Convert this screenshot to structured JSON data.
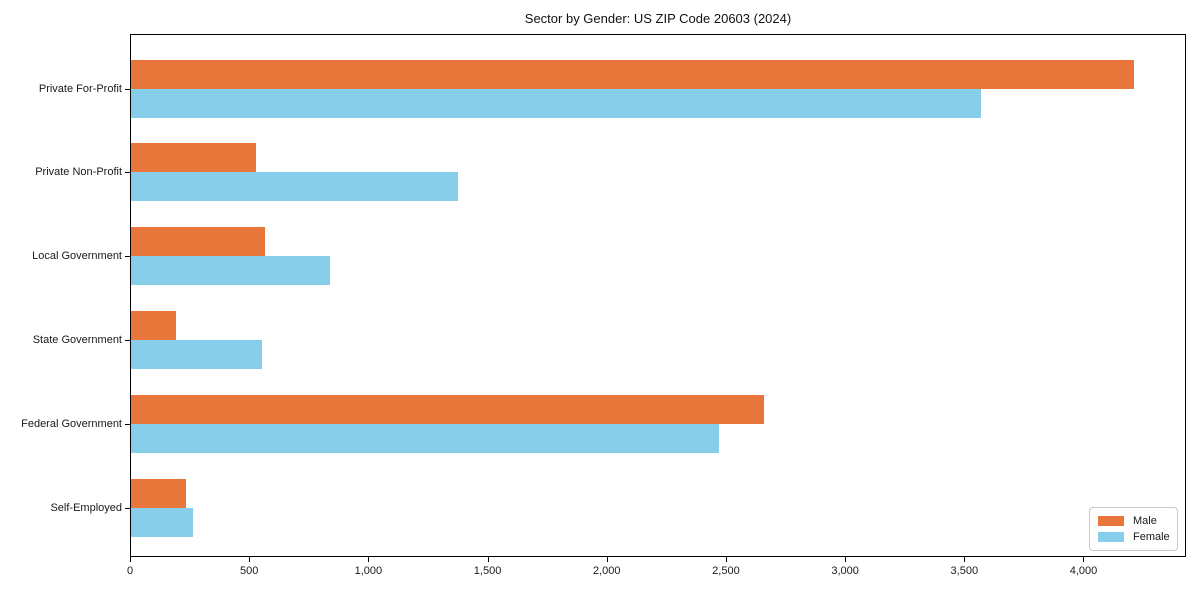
{
  "chart_data": {
    "type": "bar",
    "orientation": "horizontal",
    "title": "Sector by Gender: US ZIP Code 20603 (2024)",
    "categories": [
      "Private For-Profit",
      "Private Non-Profit",
      "Local Government",
      "State Government",
      "Federal Government",
      "Self-Employed"
    ],
    "series": [
      {
        "name": "Male",
        "color": "#E8763B",
        "values": [
          4210,
          530,
          565,
          195,
          2660,
          235
        ]
      },
      {
        "name": "Female",
        "color": "#87CEEB",
        "values": [
          3570,
          1375,
          840,
          555,
          2470,
          265
        ]
      }
    ],
    "xlim": [
      0,
      4430
    ],
    "xticks": [
      0,
      500,
      1000,
      1500,
      2000,
      2500,
      3000,
      3500,
      4000
    ],
    "xtick_labels": [
      "0",
      "500",
      "1,000",
      "1,500",
      "2,000",
      "2,500",
      "3,000",
      "3,500",
      "4,000"
    ],
    "xlabel": "",
    "ylabel": "",
    "grid": false,
    "legend_position": "lower right"
  }
}
